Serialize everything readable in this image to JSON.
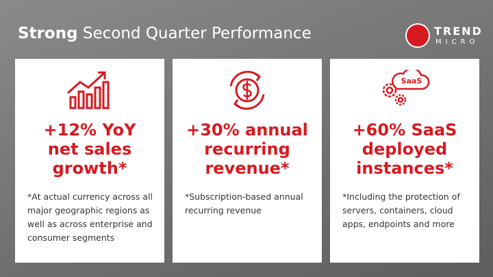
{
  "header": {
    "title_bold": "Strong",
    "title_rest": "Second Quarter Performance",
    "logo_top": "TREND",
    "logo_bottom": "MICRO"
  },
  "cards": [
    {
      "headline": [
        "+12% YoY",
        "net sales",
        "growth*"
      ],
      "footnote": "*At actual currency across all major geographic regions as well as across enterprise and consumer segments"
    },
    {
      "headline": [
        "+30% annual",
        "recurring",
        "revenue*"
      ],
      "footnote": "*Subscription-based annual recurring revenue"
    },
    {
      "headline": [
        "+60% SaaS",
        "deployed",
        "instances*"
      ],
      "footnote": "*Including the protection of servers, containers, cloud apps, endpoints and more",
      "icon_text": "SaaS"
    }
  ]
}
